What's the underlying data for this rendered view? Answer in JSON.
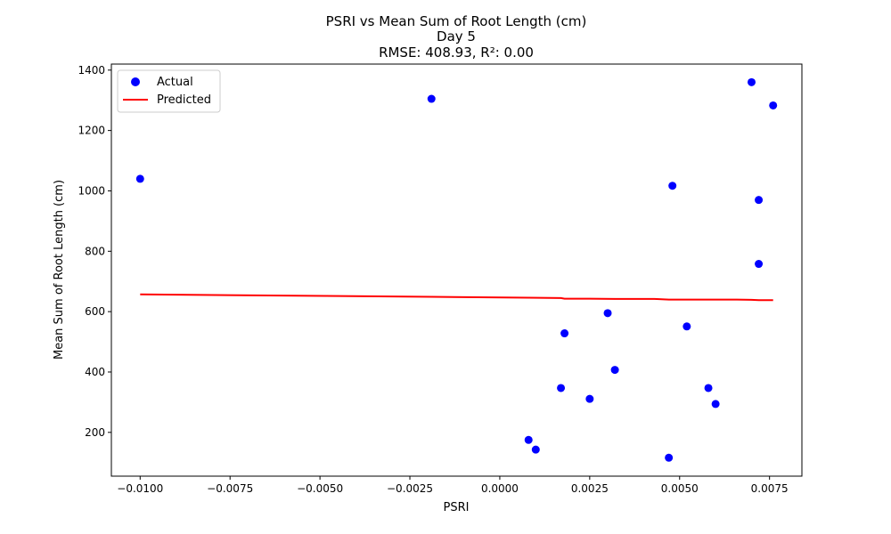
{
  "chart_data": {
    "type": "scatter",
    "title_lines": [
      "PSRI vs Mean Sum of Root Length (cm)",
      "Day 5",
      "RMSE: 408.93, R²: 0.00"
    ],
    "xlabel": "PSRI",
    "ylabel": "Mean Sum of Root Length (cm)",
    "xlim": [
      -0.0108,
      0.0084
    ],
    "ylim": [
      55,
      1420
    ],
    "x_ticks": [
      -0.01,
      -0.0075,
      -0.005,
      -0.0025,
      0.0,
      0.0025,
      0.005,
      0.0075
    ],
    "x_tick_labels": [
      "−0.0100",
      "−0.0075",
      "−0.0050",
      "−0.0025",
      "0.0000",
      "0.0025",
      "0.0050",
      "0.0075"
    ],
    "y_ticks": [
      200,
      400,
      600,
      800,
      1000,
      1200,
      1400
    ],
    "y_tick_labels": [
      "200",
      "400",
      "600",
      "800",
      "1000",
      "1200",
      "1400"
    ],
    "grid": false,
    "legend": {
      "placement": "top-left",
      "entries": [
        {
          "label": "Actual",
          "marker": "circle",
          "color": "#0000ff"
        },
        {
          "label": "Predicted",
          "marker": "line",
          "color": "#ff0000"
        }
      ]
    },
    "series": [
      {
        "name": "Actual",
        "kind": "scatter",
        "color": "#0000ff",
        "points": [
          {
            "x": -0.01,
            "y": 1040
          },
          {
            "x": -0.0019,
            "y": 1305
          },
          {
            "x": 0.0008,
            "y": 175
          },
          {
            "x": 0.001,
            "y": 143
          },
          {
            "x": 0.0017,
            "y": 347
          },
          {
            "x": 0.0018,
            "y": 528
          },
          {
            "x": 0.0025,
            "y": 311
          },
          {
            "x": 0.003,
            "y": 595
          },
          {
            "x": 0.0032,
            "y": 407
          },
          {
            "x": 0.0047,
            "y": 116
          },
          {
            "x": 0.0048,
            "y": 1017
          },
          {
            "x": 0.0052,
            "y": 551
          },
          {
            "x": 0.0058,
            "y": 347
          },
          {
            "x": 0.006,
            "y": 294
          },
          {
            "x": 0.007,
            "y": 1360
          },
          {
            "x": 0.0072,
            "y": 758
          },
          {
            "x": 0.0072,
            "y": 970
          },
          {
            "x": 0.0076,
            "y": 1283
          }
        ]
      },
      {
        "name": "Predicted",
        "kind": "line",
        "color": "#ff0000",
        "points": [
          {
            "x": -0.01,
            "y": 657
          },
          {
            "x": -0.0019,
            "y": 649
          },
          {
            "x": 0.0008,
            "y": 646
          },
          {
            "x": 0.0017,
            "y": 645
          },
          {
            "x": 0.0018,
            "y": 643
          },
          {
            "x": 0.0025,
            "y": 643
          },
          {
            "x": 0.0032,
            "y": 642
          },
          {
            "x": 0.0043,
            "y": 642
          },
          {
            "x": 0.0047,
            "y": 640
          },
          {
            "x": 0.0052,
            "y": 640
          },
          {
            "x": 0.0058,
            "y": 640
          },
          {
            "x": 0.0066,
            "y": 640
          },
          {
            "x": 0.007,
            "y": 639
          },
          {
            "x": 0.0072,
            "y": 638
          },
          {
            "x": 0.0076,
            "y": 638
          }
        ]
      }
    ]
  }
}
